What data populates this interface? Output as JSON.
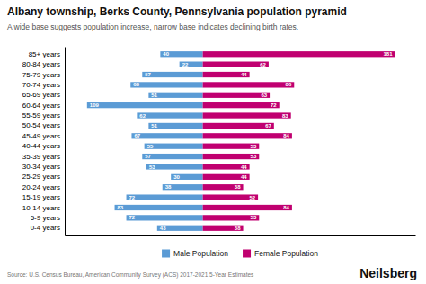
{
  "chart_data": {
    "type": "bar",
    "orientation": "horizontal",
    "title": "Albany township, Berks County, Pennsylvania population pyramid",
    "subtitle": "A wide base suggests population increase, narrow base indicates declining birth rates.",
    "annotations": [
      "Source: U.S. Census Bureau, American Community Survey (ACS) 2017-2021 5-Year Estimates",
      "Neilsberg"
    ],
    "categories": [
      "0-4 years",
      "5-9 years",
      "10-14 years",
      "15-19 years",
      "20-24 years",
      "25-29 years",
      "30-34 years",
      "35-39 years",
      "40-44 years",
      "45-49 years",
      "50-54 years",
      "55-59 years",
      "60-64 years",
      "65-69 years",
      "70-74 years",
      "75-79 years",
      "80-84 years",
      "85+ years"
    ],
    "series": [
      {
        "name": "Male Population",
        "color": "#5b9bd5",
        "values": [
          43,
          72,
          83,
          72,
          38,
          30,
          53,
          57,
          55,
          67,
          51,
          62,
          109,
          51,
          68,
          57,
          22,
          40
        ]
      },
      {
        "name": "Female Population",
        "color": "#c00070",
        "values": [
          38,
          53,
          84,
          52,
          38,
          44,
          44,
          53,
          53,
          84,
          67,
          83,
          72,
          63,
          86,
          44,
          62,
          181
        ]
      }
    ],
    "xlim": [
      -130,
      200
    ],
    "xticks": [],
    "tick_labels": "y",
    "data_labels": true,
    "legend": "bottom"
  }
}
